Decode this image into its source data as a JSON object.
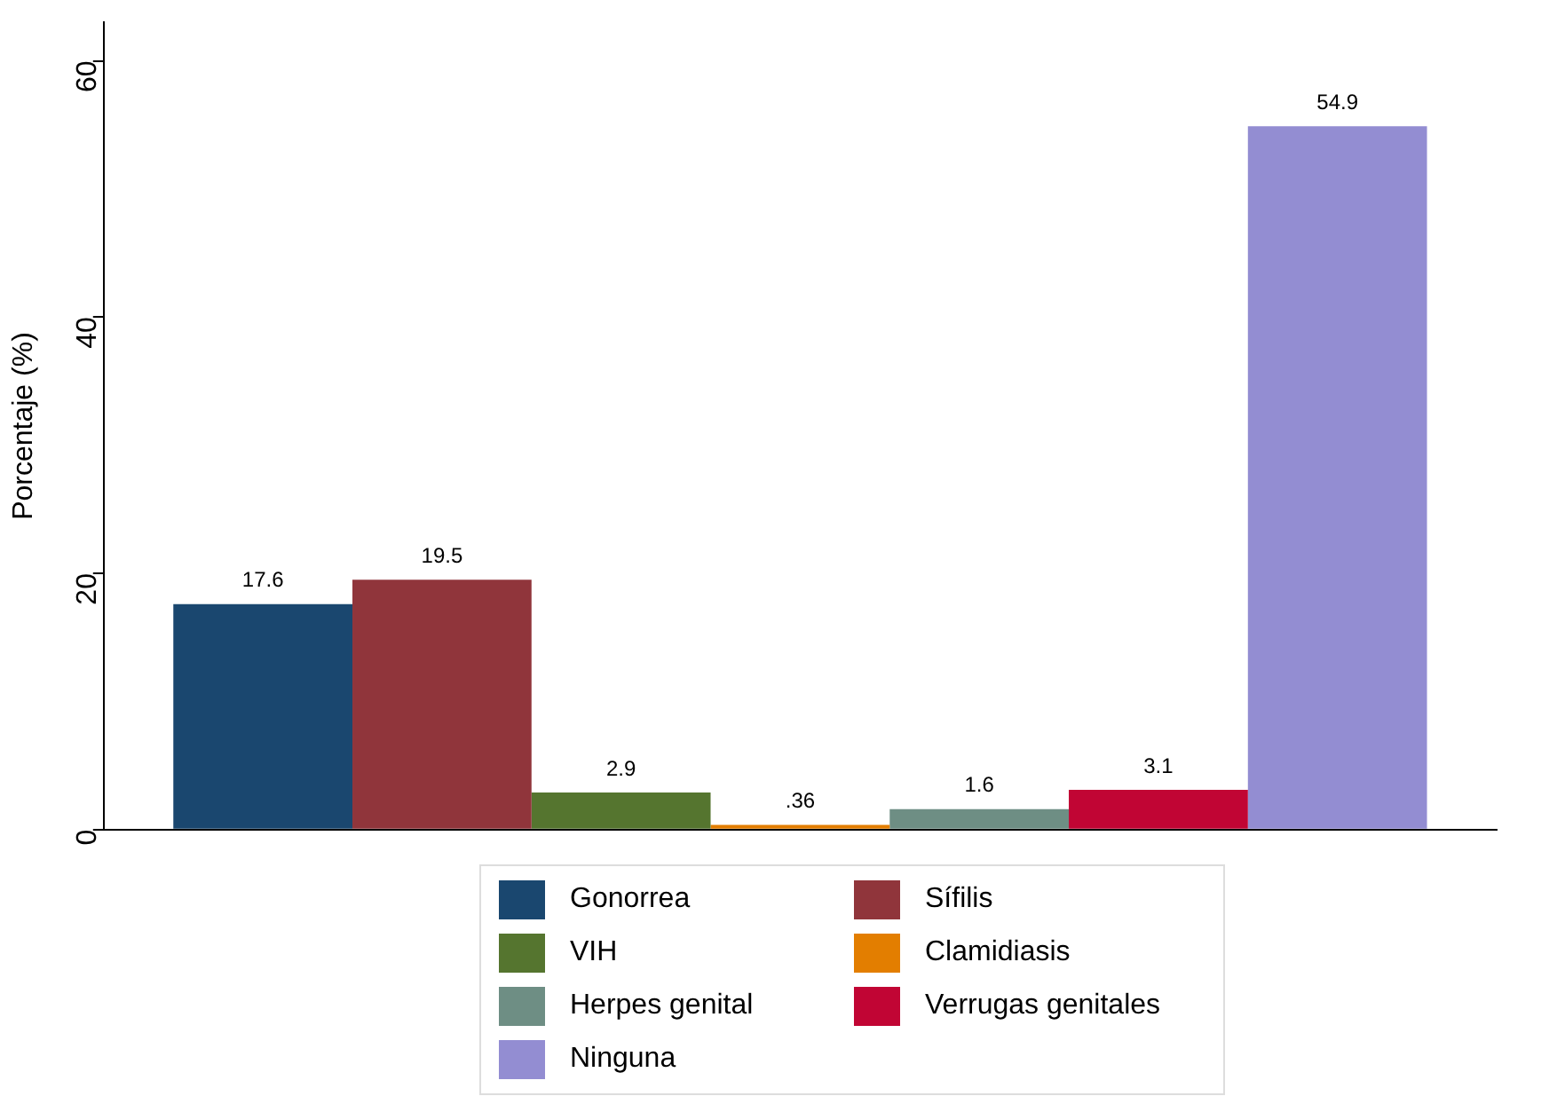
{
  "chart_data": {
    "type": "bar",
    "ylabel": "Porcentaje (%)",
    "categories": [
      null
    ],
    "ylim": [
      0,
      63
    ],
    "yticks": [
      0,
      20,
      40,
      60
    ],
    "grid": false,
    "legend": "bottom",
    "tick_labels": "y",
    "series": [
      {
        "name": "Gonorrea",
        "color": "#1a476f",
        "values": [
          17.6
        ],
        "value_labels": [
          "17.6"
        ]
      },
      {
        "name": "Sífilis",
        "color": "#90353b",
        "values": [
          19.5
        ],
        "value_labels": [
          "19.5"
        ]
      },
      {
        "name": "VIH",
        "color": "#55752f",
        "values": [
          2.9
        ],
        "value_labels": [
          "2.9"
        ]
      },
      {
        "name": "Clamidiasis",
        "color": "#e37e00",
        "values": [
          0.36
        ],
        "value_labels": [
          ".36"
        ]
      },
      {
        "name": "Herpes genital",
        "color": "#6e8e84",
        "values": [
          1.6
        ],
        "value_labels": [
          "1.6"
        ]
      },
      {
        "name": "Verrugas genitales",
        "color": "#c10534",
        "values": [
          3.1
        ],
        "value_labels": [
          "3.1"
        ]
      },
      {
        "name": "Ninguna",
        "color": "#938dd2",
        "values": [
          54.9
        ],
        "value_labels": [
          "54.9"
        ]
      }
    ]
  }
}
